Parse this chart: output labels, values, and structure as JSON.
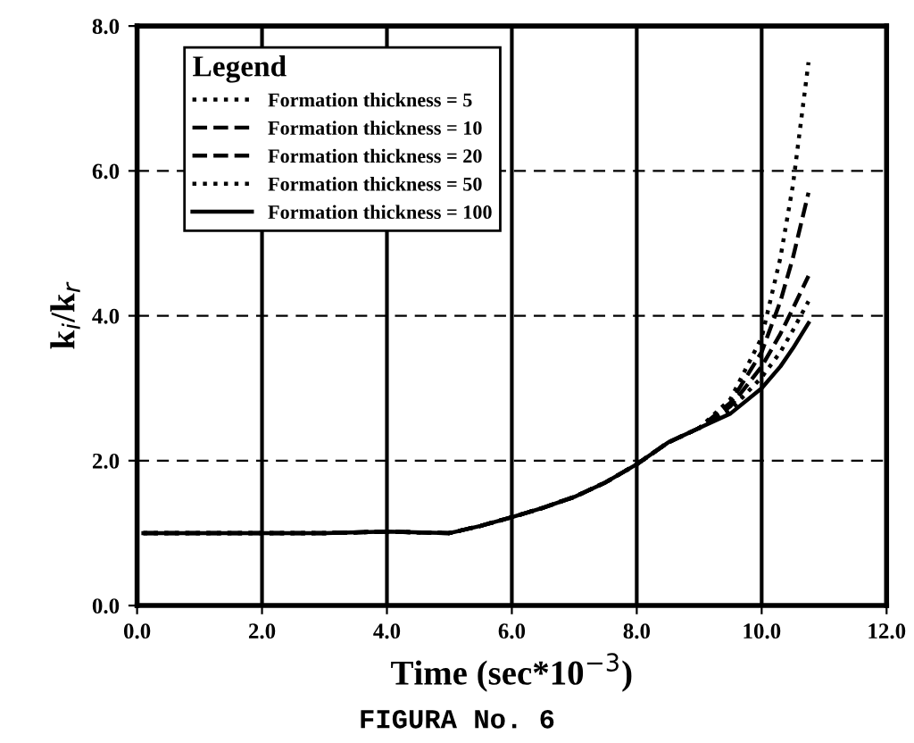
{
  "chart_data": {
    "type": "line",
    "xlabel": "Time (sec*10$^{−3}$)",
    "ylabel": "k$_{i}$/k$_{r}$",
    "legend_title": "Legend",
    "annotations": [
      "FIGURA No. 6"
    ],
    "x": [
      0.1,
      1,
      2,
      3,
      4,
      5,
      5.5,
      6,
      6.5,
      7,
      7.5,
      8,
      8.5,
      9,
      9.5,
      10,
      10.3,
      10.5,
      10.75
    ],
    "series": [
      {
        "name": "Formation thickness = 5",
        "color": "#000000",
        "line_style": "dotted",
        "values": [
          1.0,
          1.0,
          1.0,
          1.0,
          1.02,
          1.0,
          1.1,
          1.22,
          1.35,
          1.5,
          1.7,
          1.95,
          2.25,
          2.45,
          2.85,
          3.7,
          4.8,
          5.8,
          7.5
        ]
      },
      {
        "name": "Formation thickness = 10",
        "color": "#000000",
        "line_style": "dashed",
        "values": [
          1.0,
          1.0,
          1.0,
          1.0,
          1.02,
          1.0,
          1.1,
          1.22,
          1.35,
          1.5,
          1.7,
          1.95,
          2.25,
          2.45,
          2.8,
          3.5,
          4.2,
          4.8,
          5.7
        ]
      },
      {
        "name": "Formation thickness = 20",
        "color": "#000000",
        "line_style": "dashed",
        "values": [
          1.0,
          1.0,
          1.0,
          1.0,
          1.02,
          1.0,
          1.1,
          1.22,
          1.35,
          1.5,
          1.7,
          1.95,
          2.25,
          2.45,
          2.75,
          3.3,
          3.75,
          4.1,
          4.55
        ]
      },
      {
        "name": "Formation thickness = 50",
        "color": "#000000",
        "line_style": "dotted",
        "values": [
          1.0,
          1.0,
          1.0,
          1.0,
          1.02,
          1.0,
          1.1,
          1.22,
          1.35,
          1.5,
          1.7,
          1.95,
          2.25,
          2.45,
          2.7,
          3.15,
          3.5,
          3.8,
          4.2
        ]
      },
      {
        "name": "Formation thickness = 100",
        "color": "#000000",
        "line_style": "solid",
        "values": [
          1.0,
          1.0,
          1.0,
          1.0,
          1.02,
          1.0,
          1.1,
          1.22,
          1.35,
          1.5,
          1.7,
          1.95,
          2.25,
          2.45,
          2.65,
          3.0,
          3.3,
          3.55,
          3.9
        ]
      }
    ],
    "xlim": [
      0,
      12
    ],
    "xticks": [
      {
        "value": 0,
        "label": "0.0"
      },
      {
        "value": 2,
        "label": "2.0"
      },
      {
        "value": 4,
        "label": "4.0"
      },
      {
        "value": 6,
        "label": "6.0"
      },
      {
        "value": 8,
        "label": "8.0"
      },
      {
        "value": 10,
        "label": "10.0"
      },
      {
        "value": 12,
        "label": "12.0"
      }
    ],
    "ylim": [
      0,
      8
    ],
    "yticks": [
      {
        "value": 0,
        "label": "0.0"
      },
      {
        "value": 2,
        "label": "2.0"
      },
      {
        "value": 4,
        "label": "4.0"
      },
      {
        "value": 6,
        "label": "6.0"
      },
      {
        "value": 8,
        "label": "8.0"
      }
    ],
    "grid": true,
    "legend": "top left"
  }
}
